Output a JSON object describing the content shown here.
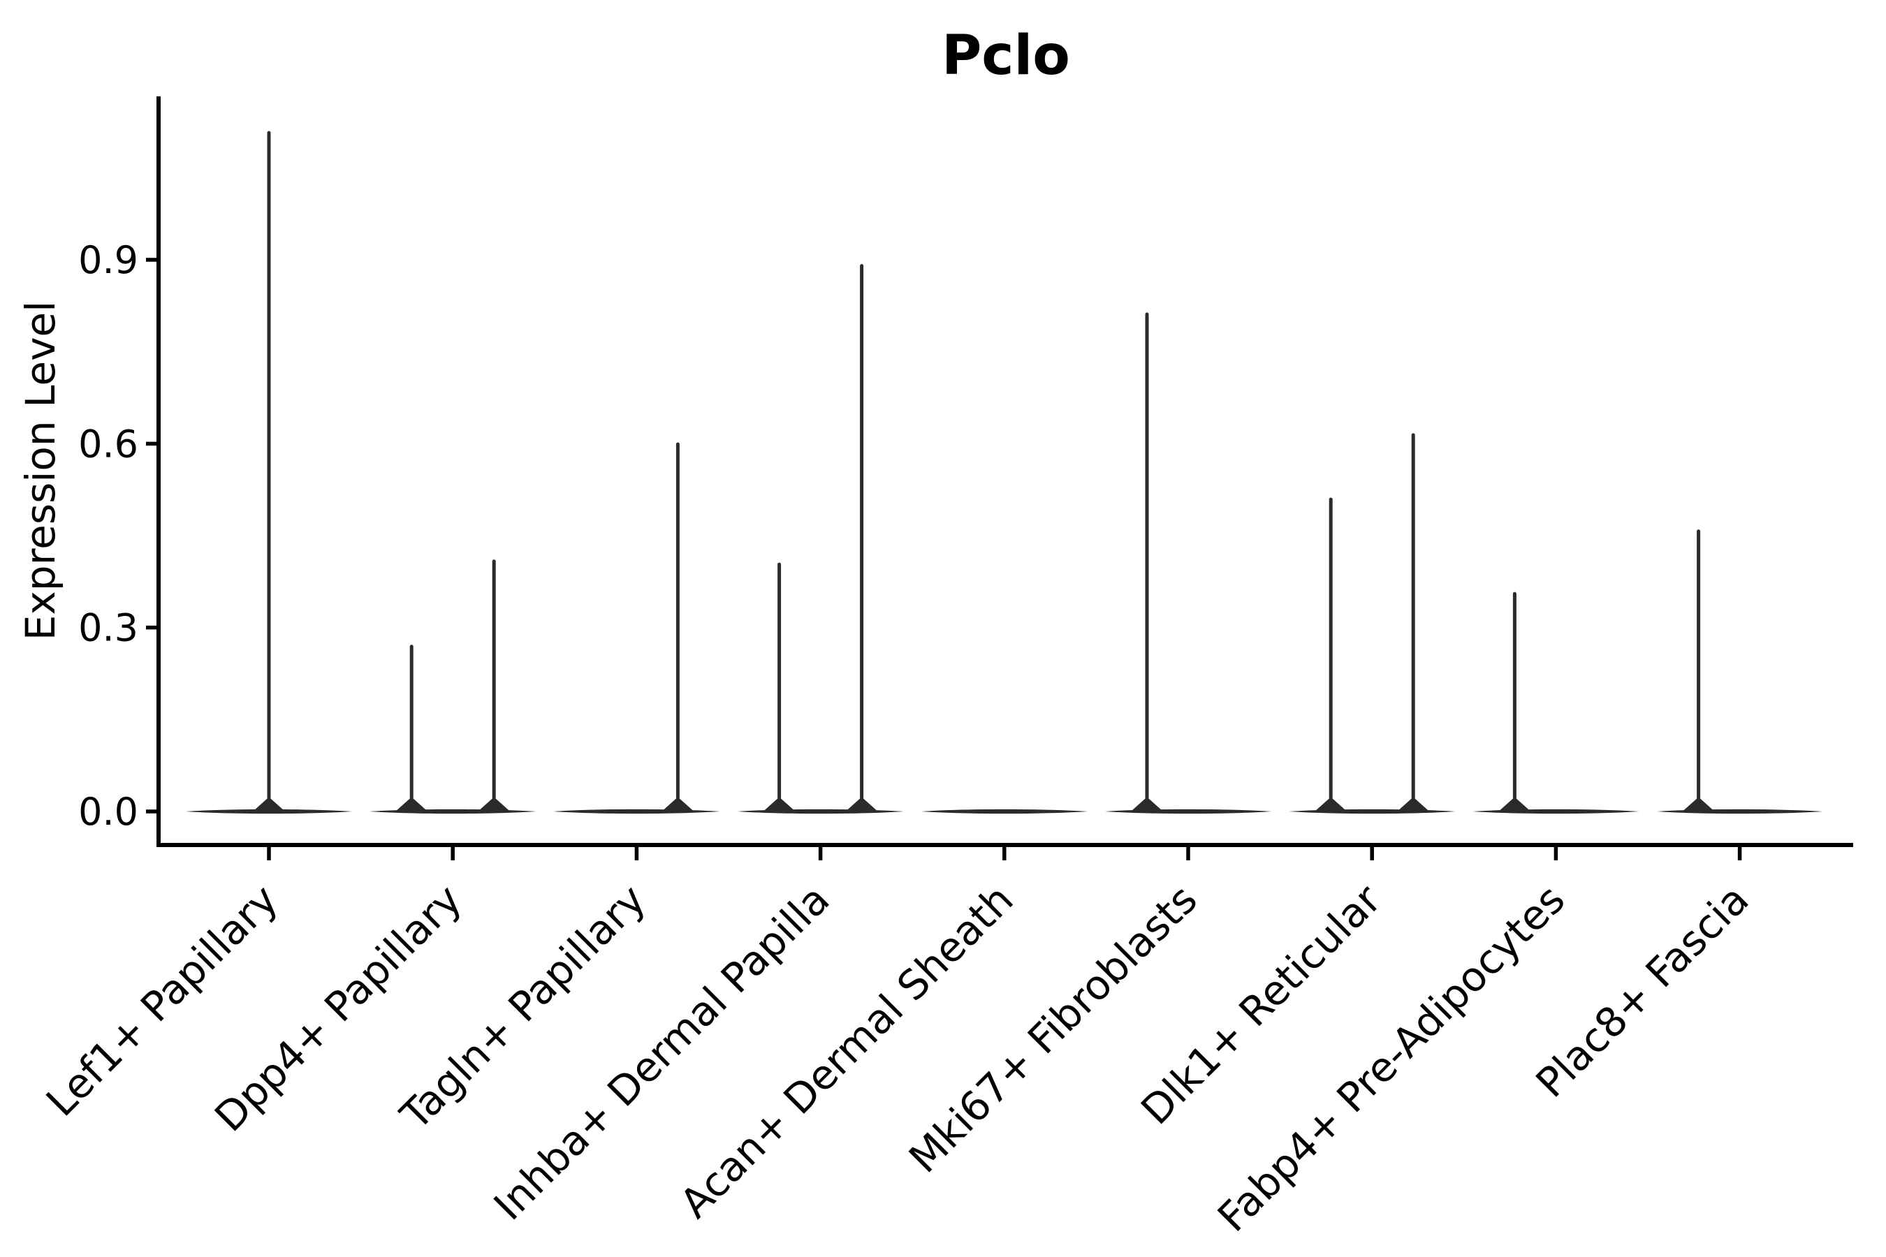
{
  "figure": {
    "background": "#ffffff"
  },
  "chart_data": {
    "type": "violin",
    "title": "Pclo",
    "xlabel": "",
    "ylabel": "Expression Level",
    "ytick_labels": [
      "0.0",
      "0.3",
      "0.6",
      "0.9"
    ],
    "ytick_values": [
      0.0,
      0.3,
      0.6,
      0.9
    ],
    "ylim": [
      -0.055,
      1.166
    ],
    "grid": false,
    "legend": "none",
    "categories": [
      "Lef1+ Papillary",
      "Dpp4+ Papillary",
      "Tagln+ Papillary",
      "Inhba+ Dermal Papilla",
      "Acan+ Dermal Sheath",
      "Mki67+ Fibroblasts",
      "Dlk1+ Reticular",
      "Fabp4+ Pre-Adipocytes",
      "Plac8+ Fascia"
    ],
    "violins": [
      {
        "category": "Lef1+ Papillary",
        "spikes": [
          {
            "pos": "center",
            "max": 1.11
          }
        ]
      },
      {
        "category": "Dpp4+ Papillary",
        "spikes": [
          {
            "pos": "left",
            "max": 0.272
          },
          {
            "pos": "right",
            "max": 0.411
          }
        ]
      },
      {
        "category": "Tagln+ Papillary",
        "spikes": [
          {
            "pos": "right",
            "max": 0.602
          }
        ]
      },
      {
        "category": "Inhba+ Dermal Papilla",
        "spikes": [
          {
            "pos": "left",
            "max": 0.406
          },
          {
            "pos": "right",
            "max": 0.893
          }
        ]
      },
      {
        "category": "Acan+ Dermal Sheath",
        "spikes": []
      },
      {
        "category": "Mki67+ Fibroblasts",
        "spikes": [
          {
            "pos": "left",
            "max": 0.814
          }
        ]
      },
      {
        "category": "Dlk1+ Reticular",
        "spikes": [
          {
            "pos": "left",
            "max": 0.512
          },
          {
            "pos": "right",
            "max": 0.617
          }
        ]
      },
      {
        "category": "Fabp4+ Pre-Adipocytes",
        "spikes": [
          {
            "pos": "left",
            "max": 0.358
          }
        ]
      },
      {
        "category": "Plac8+ Fascia",
        "spikes": [
          {
            "pos": "left",
            "max": 0.46
          }
        ]
      }
    ],
    "colors": {
      "violin": "#2b2b2b",
      "axis": "#000000",
      "text": "#000000",
      "background": "#ffffff"
    }
  }
}
